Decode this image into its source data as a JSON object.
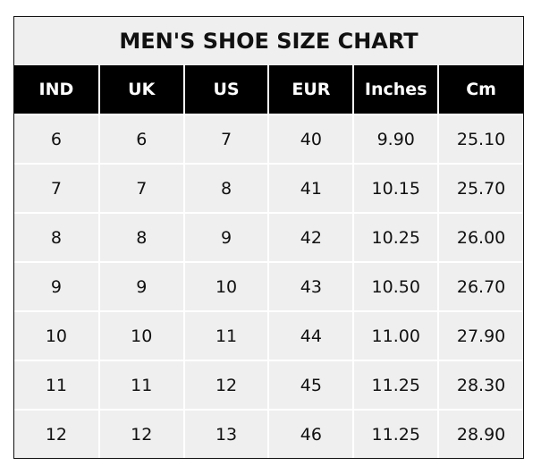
{
  "title": "MEN'S SHOE SIZE CHART",
  "columns": [
    "IND",
    "UK",
    "US",
    "EUR",
    "Inches",
    "Cm"
  ],
  "rows": [
    [
      "6",
      "6",
      "7",
      "40",
      "9.90",
      "25.10"
    ],
    [
      "7",
      "7",
      "8",
      "41",
      "10.15",
      "25.70"
    ],
    [
      "8",
      "8",
      "9",
      "42",
      "10.25",
      "26.00"
    ],
    [
      "9",
      "9",
      "10",
      "43",
      "10.50",
      "26.70"
    ],
    [
      "10",
      "10",
      "11",
      "44",
      "11.00",
      "27.90"
    ],
    [
      "11",
      "11",
      "12",
      "45",
      "11.25",
      "28.30"
    ],
    [
      "12",
      "12",
      "13",
      "46",
      "11.25",
      "28.90"
    ]
  ],
  "colors": {
    "header_bg": "#000000",
    "header_text": "#ffffff",
    "cell_bg": "#efefef"
  }
}
